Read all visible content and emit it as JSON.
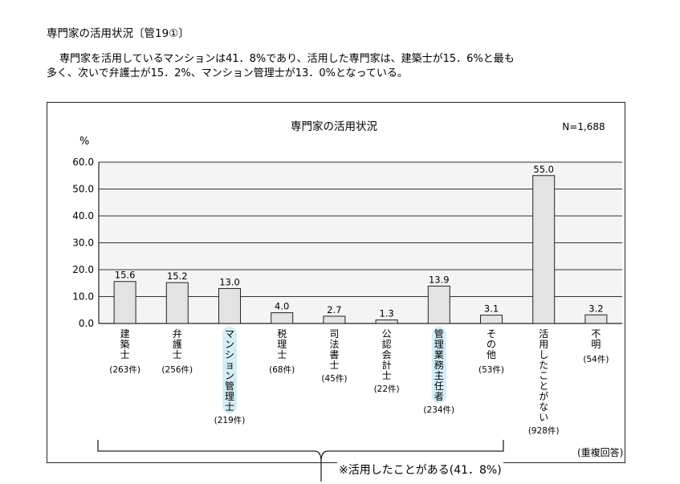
{
  "page": {
    "heading": "専門家の活用状況〔管19①〕",
    "summary_line1": "専門家を活用しているマンションは41．8%であり、活用した専門家は、建築士が15．6%と最も",
    "summary_line2": "多く、次いで弁護士が15．2%、マンション管理士が13．0%となっている。",
    "footnote": "※活用したことがある(41．8%)"
  },
  "chart_data": {
    "type": "bar",
    "title": "専門家の活用状況",
    "n_label": "N=1,688",
    "ylabel": "%",
    "ylim": [
      0,
      60
    ],
    "yticks": [
      "0.0",
      "10.0",
      "20.0",
      "30.0",
      "40.0",
      "50.0",
      "60.0"
    ],
    "grid": true,
    "multi_answer_note": "(重複回答)",
    "categories": [
      "建築士",
      "弁護士",
      "マンション管理士",
      "税理士",
      "司法書士",
      "公認会計士",
      "管理業務主任者",
      "その他",
      "活用したことがない",
      "不明"
    ],
    "counts": [
      "(263件)",
      "(256件)",
      "(219件)",
      "(68件)",
      "(45件)",
      "(22件)",
      "(234件)",
      "(53件)",
      "(928件)",
      "(54件)"
    ],
    "values": [
      15.6,
      15.2,
      13.0,
      4.0,
      2.7,
      1.3,
      13.9,
      3.1,
      55.0,
      3.2
    ],
    "value_labels": [
      "15.6",
      "15.2",
      "13.0",
      "4.0",
      "2.7",
      "1.3",
      "13.9",
      "3.1",
      "55.0",
      "3.2"
    ],
    "highlighted": [
      "マンション管理士",
      "管理業務主任者"
    ],
    "colors": {
      "bar_fill": "#e3e3e3",
      "bar_stroke": "#222222",
      "plot_bg": "#f4f4f4",
      "highlight": "#9fd8ee"
    }
  }
}
